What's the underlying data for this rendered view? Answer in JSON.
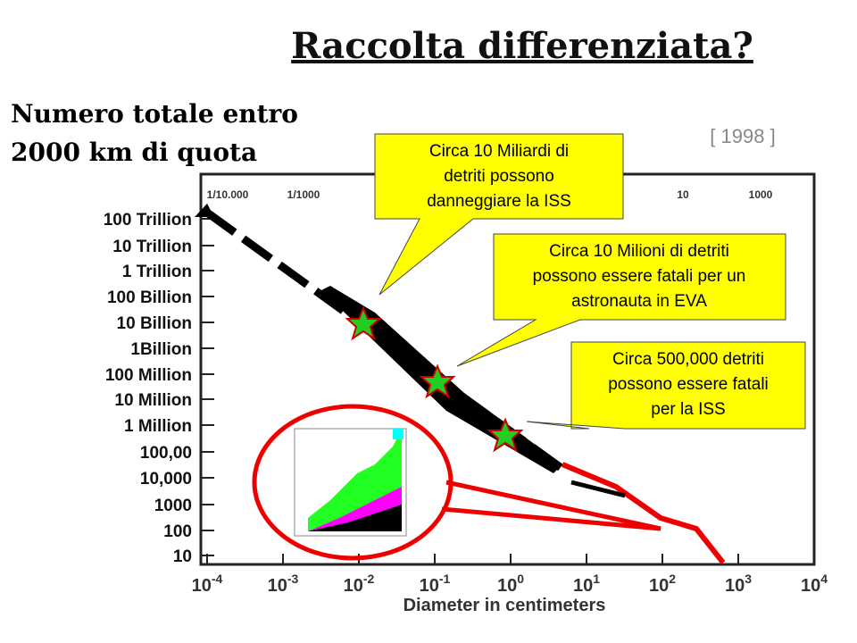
{
  "header": {
    "title": "Raccolta differenziata?",
    "subtitle": [
      "Numero totale entro",
      "2000 km di quota"
    ],
    "year": "[ 1998 ]"
  },
  "chart": {
    "y_labels": [
      "100 Trillion",
      "10 Trillion",
      "1 Trillion",
      "100 Billion",
      "10 Billion",
      "1Billion",
      "100  Million",
      "10 Million",
      "1 Million",
      "100,00",
      "10,000",
      "1000",
      "100",
      "10"
    ],
    "top_labels": [
      "1/10.000",
      "1/1000",
      "10",
      "1000"
    ],
    "x_labels": [
      {
        "base": "10",
        "exp": "-4"
      },
      {
        "base": "10",
        "exp": "-3"
      },
      {
        "base": "10",
        "exp": "-2"
      },
      {
        "base": "10",
        "exp": "-1"
      },
      {
        "base": "10",
        "exp": "0"
      },
      {
        "base": "10",
        "exp": "1"
      },
      {
        "base": "10",
        "exp": "2"
      },
      {
        "base": "10",
        "exp": "3"
      },
      {
        "base": "10",
        "exp": "4"
      }
    ],
    "x_title": "Diameter in centimeters"
  },
  "callouts": [
    [
      "Circa 10 Miliardi di",
      "detriti possono",
      "danneggiare la ISS"
    ],
    [
      "Circa 10 Milioni di detriti",
      "possono essere fatali per un",
      "astronauta in EVA"
    ],
    [
      "Circa 500,000 detriti",
      "possono essere fatali",
      "per la ISS"
    ]
  ]
}
